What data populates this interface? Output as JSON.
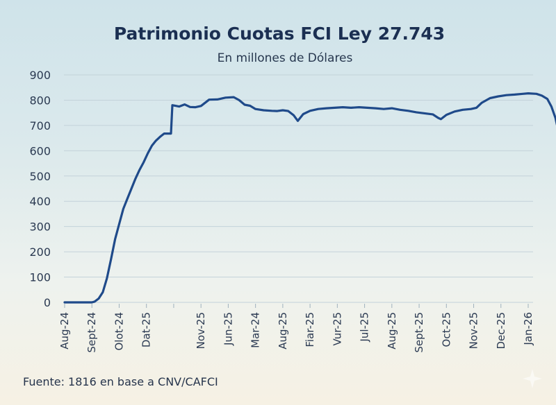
{
  "chart_data": {
    "type": "line",
    "title": "Patrimonio Cuotas FCI Ley 27.743",
    "subtitle": "En millones de Dólares",
    "source": "Fuente: 1816 en base a CNV/CAFCI",
    "ylim": [
      0,
      900
    ],
    "yticks": [
      0,
      100,
      200,
      300,
      400,
      500,
      600,
      700,
      800,
      900
    ],
    "grid": true,
    "x_tick_labels": [
      "Aug-24",
      "Sept-24",
      "Olot-24",
      "Dat-25",
      "",
      "Nov-25",
      "Jun-25",
      "Mar-24",
      "Aug-25",
      "Fiar-25",
      "Vur-25",
      "Jul-25",
      "Aug-25",
      "Sept-25",
      "Oct-25",
      "Nov-25",
      "Dec-25",
      "Jan-26"
    ],
    "line_color": "#1f4a8a",
    "series": [
      {
        "values": [
          [
            0,
            0
          ],
          [
            0.5,
            0
          ],
          [
            1.0,
            0
          ],
          [
            1.1,
            3
          ],
          [
            1.25,
            15
          ],
          [
            1.4,
            40
          ],
          [
            1.55,
            95
          ],
          [
            1.7,
            170
          ],
          [
            1.85,
            250
          ],
          [
            2.0,
            310
          ],
          [
            2.15,
            370
          ],
          [
            2.3,
            410
          ],
          [
            2.45,
            450
          ],
          [
            2.6,
            490
          ],
          [
            2.75,
            525
          ],
          [
            2.9,
            555
          ],
          [
            3.05,
            590
          ],
          [
            3.2,
            620
          ],
          [
            3.35,
            640
          ],
          [
            3.5,
            655
          ],
          [
            3.65,
            668
          ],
          [
            3.9,
            668
          ],
          [
            3.95,
            780
          ],
          [
            4.2,
            775
          ],
          [
            4.4,
            783
          ],
          [
            4.6,
            773
          ],
          [
            4.8,
            772
          ],
          [
            5.0,
            777
          ],
          [
            5.3,
            802
          ],
          [
            5.6,
            803
          ],
          [
            5.9,
            810
          ],
          [
            6.2,
            812
          ],
          [
            6.4,
            800
          ],
          [
            6.6,
            782
          ],
          [
            6.8,
            778
          ],
          [
            7.0,
            765
          ],
          [
            7.3,
            760
          ],
          [
            7.6,
            758
          ],
          [
            7.8,
            757
          ],
          [
            8.0,
            760
          ],
          [
            8.2,
            757
          ],
          [
            8.4,
            740
          ],
          [
            8.55,
            718
          ],
          [
            8.75,
            745
          ],
          [
            9.0,
            758
          ],
          [
            9.3,
            765
          ],
          [
            9.6,
            768
          ],
          [
            9.9,
            770
          ],
          [
            10.2,
            772
          ],
          [
            10.5,
            770
          ],
          [
            10.8,
            772
          ],
          [
            11.1,
            770
          ],
          [
            11.4,
            768
          ],
          [
            11.7,
            765
          ],
          [
            12.0,
            768
          ],
          [
            12.3,
            762
          ],
          [
            12.6,
            758
          ],
          [
            12.9,
            752
          ],
          [
            13.2,
            748
          ],
          [
            13.5,
            744
          ],
          [
            13.7,
            730
          ],
          [
            13.8,
            725
          ],
          [
            14.0,
            742
          ],
          [
            14.3,
            755
          ],
          [
            14.6,
            762
          ],
          [
            14.9,
            765
          ],
          [
            15.1,
            770
          ],
          [
            15.3,
            790
          ],
          [
            15.6,
            808
          ],
          [
            15.9,
            815
          ],
          [
            16.2,
            820
          ],
          [
            16.5,
            822
          ],
          [
            16.8,
            825
          ],
          [
            17.0,
            827
          ],
          [
            17.3,
            825
          ],
          [
            17.5,
            818
          ],
          [
            17.7,
            805
          ],
          [
            17.85,
            775
          ],
          [
            18.0,
            730
          ],
          [
            18.1,
            680
          ],
          [
            18.25,
            588
          ]
        ]
      }
    ]
  }
}
